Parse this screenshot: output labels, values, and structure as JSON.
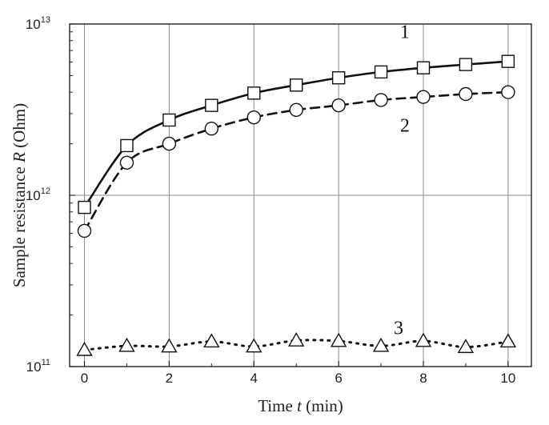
{
  "chart_data": {
    "type": "line",
    "xlabel_prefix": "Time ",
    "xlabel_var": "t",
    "xlabel_suffix": " (min)",
    "ylabel_prefix": "Sample resistance ",
    "ylabel_var": "R",
    "ylabel_suffix": " (Ohm)",
    "xlim": [
      -0.35,
      10.55
    ],
    "ylim": [
      100000000000,
      10000000000000
    ],
    "y_scale": "log",
    "grid": true,
    "x_ticks": [
      0,
      2,
      4,
      6,
      8,
      10
    ],
    "x_tick_labels": [
      "0",
      "2",
      "4",
      "6",
      "8",
      "10"
    ],
    "y_ticks": [
      {
        "value": 100000000000,
        "base": "10",
        "exp": "11"
      },
      {
        "value": 1000000000000,
        "base": "10",
        "exp": "12"
      },
      {
        "value": 10000000000000,
        "base": "10",
        "exp": "13"
      }
    ],
    "series": [
      {
        "label": "1",
        "marker": "square",
        "line_style": "solid",
        "x": [
          0,
          1,
          2,
          3,
          4,
          5,
          6,
          7,
          8,
          9,
          10
        ],
        "y": [
          850000000000,
          1950000000000,
          2750000000000,
          3350000000000,
          3950000000000,
          4400000000000,
          4850000000000,
          5250000000000,
          5550000000000,
          5800000000000,
          6050000000000
        ]
      },
      {
        "label": "2",
        "marker": "circle",
        "line_style": "dashed",
        "x": [
          0,
          1,
          2,
          3,
          4,
          5,
          6,
          7,
          8,
          9,
          10
        ],
        "y": [
          620000000000,
          1550000000000,
          2000000000000,
          2450000000000,
          2850000000000,
          3150000000000,
          3350000000000,
          3600000000000,
          3750000000000,
          3900000000000,
          4000000000000
        ]
      },
      {
        "label": "3",
        "marker": "triangle",
        "line_style": "dotted",
        "x": [
          0,
          1,
          2,
          3,
          4,
          5,
          6,
          7,
          8,
          9,
          10
        ],
        "y": [
          125000000000,
          132000000000,
          131000000000,
          140000000000,
          131000000000,
          142000000000,
          141000000000,
          132000000000,
          141000000000,
          130000000000,
          140000000000
        ]
      }
    ],
    "curve_labels": [
      "1",
      "2",
      "3"
    ]
  }
}
